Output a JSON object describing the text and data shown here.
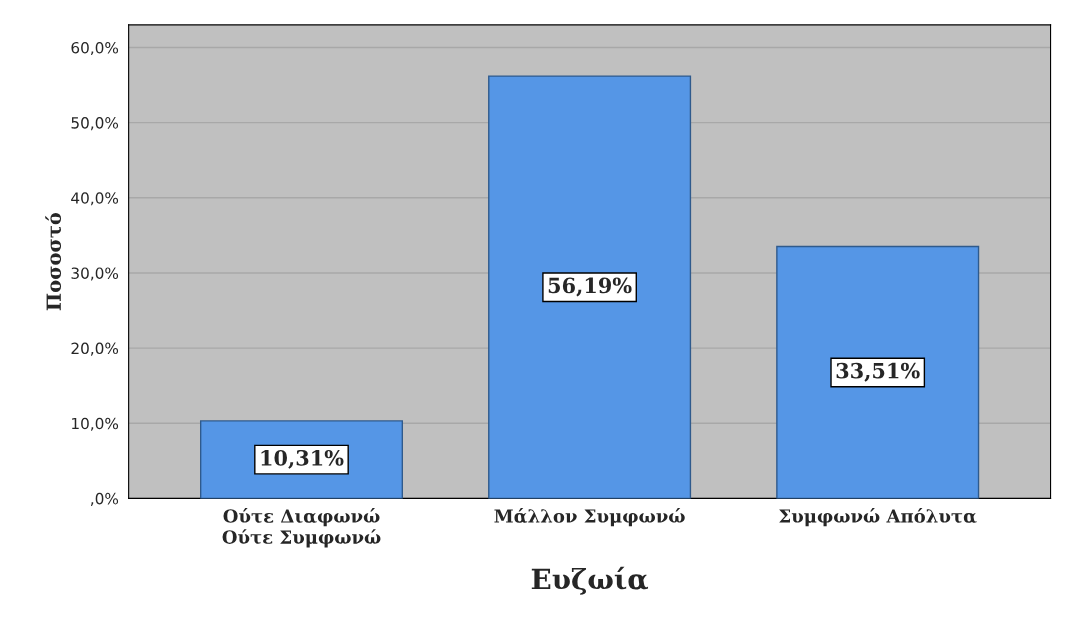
{
  "chart_data": {
    "type": "bar",
    "xlabel": "Ευζωία",
    "ylabel": "Ποσοστό",
    "categories": [
      "Ούτε Διαφωνώ\nΟύτε Συμφωνώ",
      "Μάλλον Συμφωνώ",
      "Συμφωνώ Απόλυτα"
    ],
    "values": [
      10.31,
      56.19,
      33.51
    ],
    "value_labels": [
      "10,31%",
      "56,19%",
      "33,51%"
    ],
    "color": "#5596e6",
    "ylim": [
      0,
      63
    ],
    "yticks": [
      {
        "value": 0,
        "label": ",0%"
      },
      {
        "value": 10,
        "label": "10,0%"
      },
      {
        "value": 20,
        "label": "20,0%"
      },
      {
        "value": 30,
        "label": "30,0%"
      },
      {
        "value": 40,
        "label": "40,0%"
      },
      {
        "value": 50,
        "label": "50,0%"
      },
      {
        "value": 60,
        "label": "60,0%"
      }
    ],
    "grid": "y"
  }
}
